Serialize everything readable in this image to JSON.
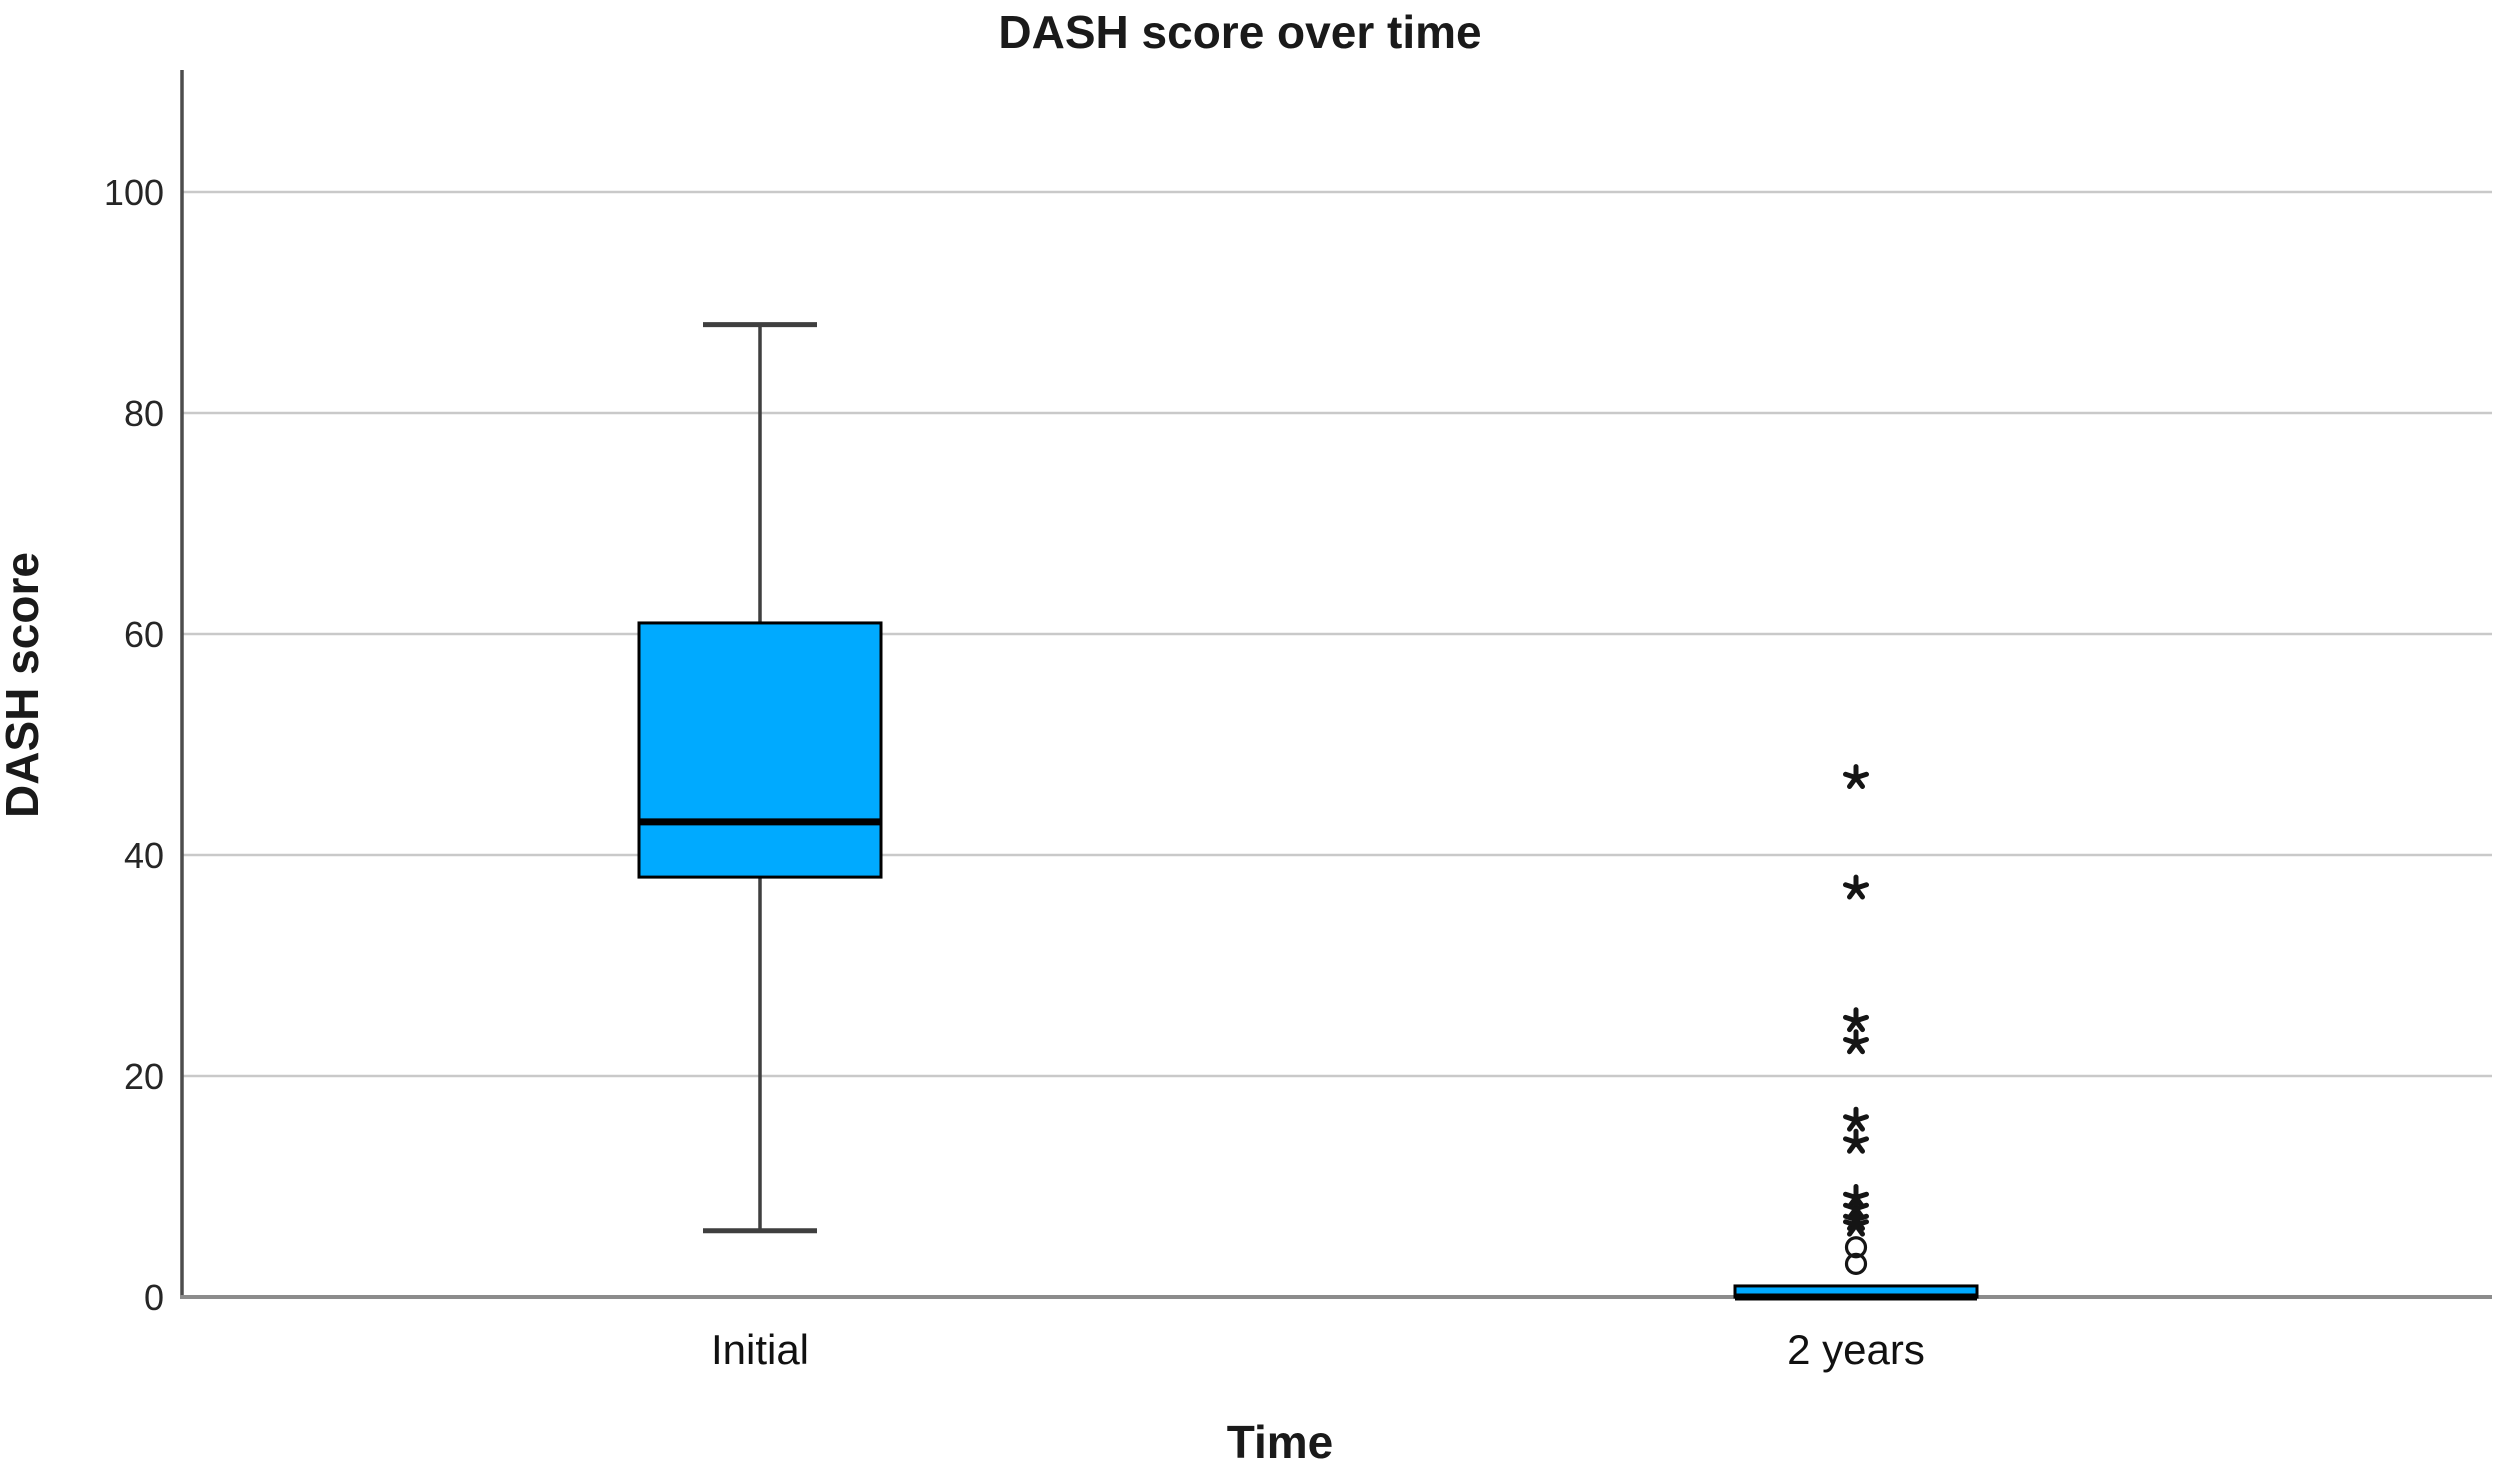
{
  "colors": {
    "background": "#FFFFFF",
    "box_fill": "#00AAFF",
    "box_border": "#000000",
    "median": "#000000",
    "whisker": "#3F3F3F",
    "grid": "#C9C9C9",
    "y_axis": "#4D4D4D",
    "x_axis": "#8C8C8C",
    "outlier": "#151515",
    "text": "#1A1A1A"
  },
  "chart_data": {
    "type": "boxplot",
    "title": "DASH score over time",
    "xlabel": "Time",
    "ylabel": "DASH score",
    "ylim": [
      0,
      100
    ],
    "yticks": [
      0,
      20,
      40,
      60,
      80,
      100
    ],
    "grid": "horizontal light-gray lines at each y tick",
    "legend": "none",
    "categories": [
      "Initial",
      "2 years"
    ],
    "series": [
      {
        "category": "Initial",
        "whisker_low": 6,
        "q1": 38,
        "median": 43,
        "q3": 61,
        "whisker_high": 88,
        "extreme_outliers": [],
        "mild_outliers": []
      },
      {
        "category": "2 years",
        "whisker_low": 0,
        "q1": 0,
        "median": 0,
        "q3": 1,
        "whisker_high": 1,
        "extreme_outliers": [
          47,
          37,
          25,
          23,
          16,
          14,
          9,
          8,
          7,
          6.5
        ],
        "mild_outliers": [
          4.5,
          3
        ]
      }
    ],
    "markers": {
      "extreme_outlier": "asterisk-star",
      "mild_outlier": "open-circle"
    }
  }
}
